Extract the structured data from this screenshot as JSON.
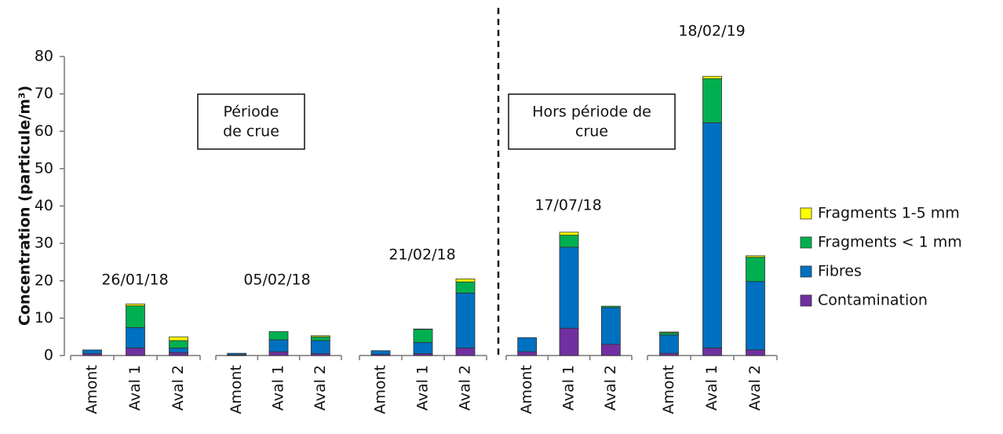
{
  "chart_data": {
    "type": "stacked_bar",
    "ylabel": "Concentration (particule/m³)",
    "ylim": [
      0,
      80
    ],
    "yticks": [
      0,
      10,
      20,
      30,
      40,
      50,
      60,
      70,
      80
    ],
    "group_labels": [
      "26/01/18",
      "05/02/18",
      "21/02/18",
      "17/07/18",
      "18/02/19"
    ],
    "categories": [
      "Amont",
      "Aval 1",
      "Aval 2",
      "Amont",
      "Aval 1",
      "Aval 2",
      "Amont",
      "Aval 1",
      "Aval 2",
      "Amont",
      "Aval 1",
      "Aval 2",
      "Amont",
      "Aval 1",
      "Aval 2"
    ],
    "series": [
      {
        "name": "Contamination",
        "color": "#7030a0",
        "values": [
          0.5,
          2,
          0.8,
          0.2,
          1,
          0.5,
          0.3,
          0.5,
          2,
          1,
          7.3,
          3,
          0.6,
          2,
          1.5
        ]
      },
      {
        "name": "Fibres",
        "color": "#0070c0",
        "values": [
          1,
          5.5,
          1.2,
          0.4,
          3.2,
          3.5,
          1,
          3,
          14.7,
          3.8,
          21.7,
          9.8,
          4.9,
          60.3,
          18.3
        ]
      },
      {
        "name": "Fragments < 1 mm",
        "color": "#00b050",
        "values": [
          0,
          5.8,
          2,
          0,
          2.2,
          1,
          0,
          3.5,
          3,
          0,
          3.2,
          0.4,
          0.6,
          11.8,
          6.5
        ]
      },
      {
        "name": "Fragments 1-5 mm",
        "color": "#ffff00",
        "values": [
          0,
          0.5,
          1,
          0,
          0,
          0.3,
          0,
          0.1,
          0.8,
          0,
          0.8,
          0,
          0.2,
          0.6,
          0.4
        ]
      }
    ],
    "annotations": [
      [
        "Période",
        "de crue"
      ],
      [
        "Hors période de",
        "crue"
      ]
    ]
  }
}
